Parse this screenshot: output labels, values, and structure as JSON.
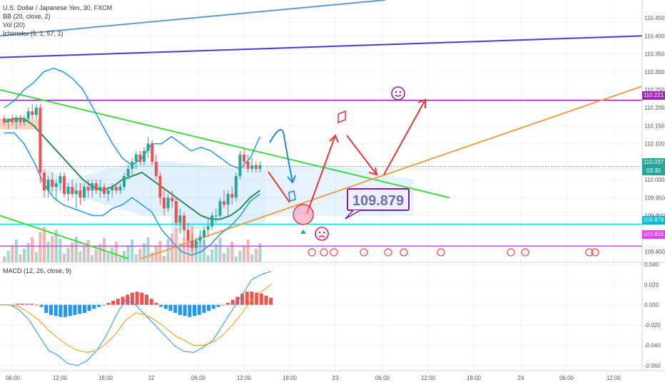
{
  "header": {
    "symbol_line": "U.S. Dollar / Japanese Yen, 30, FXCM",
    "indicators": [
      "BB (20, close, 2)",
      "Vol (20)",
      "Ichimoku (5, 1, 57, 1)"
    ],
    "macd_label": "MACD (12, 26, close, 9)"
  },
  "annotation": {
    "target_box": "109.879"
  },
  "price_tags": {
    "resistance": "110.221",
    "current": "110.037",
    "countdown": "03:30",
    "cyan_line": "109.876",
    "magenta_line": "109.815"
  },
  "chart_data": [
    {
      "type": "candlestick",
      "symbol": "U.S. Dollar / Japanese Yen",
      "timeframe": "30",
      "ylim": [
        109.77,
        110.5
      ],
      "y_ticks": [
        "110.450",
        "110.400",
        "110.350",
        "110.300",
        "110.250",
        "110.200",
        "110.150",
        "110.100",
        "110.050",
        "110.000",
        "109.950",
        "109.900",
        "109.850",
        "109.800"
      ],
      "x_ticks": [
        "06:00",
        "12:00",
        "18:00",
        "22",
        "06:00",
        "12:00",
        "18:00",
        "23",
        "06:00",
        "12:00",
        "18:00",
        "24",
        "06:00",
        "12:00"
      ],
      "horizontal_levels": [
        {
          "value": 110.221,
          "color": "#9c27b0"
        },
        {
          "value": 109.876,
          "color": "#00e5ff"
        },
        {
          "value": 109.815,
          "color": "#e040fb"
        },
        {
          "value": 110.037,
          "color": "#26a69a"
        }
      ],
      "candles_ohlc": [
        [
          110.17,
          110.18,
          110.15,
          110.16
        ],
        [
          110.16,
          110.17,
          110.14,
          110.17
        ],
        [
          110.17,
          110.18,
          110.15,
          110.16
        ],
        [
          110.16,
          110.18,
          110.14,
          110.17
        ],
        [
          110.17,
          110.18,
          110.15,
          110.16
        ],
        [
          110.16,
          110.18,
          110.15,
          110.17
        ],
        [
          110.17,
          110.2,
          110.16,
          110.19
        ],
        [
          110.19,
          110.21,
          110.17,
          110.18
        ],
        [
          110.18,
          110.21,
          110.17,
          110.2
        ],
        [
          110.2,
          110.21,
          109.99,
          110.02
        ],
        [
          110.02,
          110.03,
          109.95,
          109.97
        ],
        [
          109.97,
          110.01,
          109.95,
          110.0
        ],
        [
          110.0,
          110.02,
          109.96,
          109.98
        ],
        [
          109.98,
          110.0,
          109.94,
          109.99
        ],
        [
          109.99,
          110.02,
          109.97,
          110.01
        ],
        [
          110.01,
          110.02,
          109.95,
          109.96
        ],
        [
          109.96,
          109.99,
          109.94,
          109.98
        ],
        [
          109.98,
          110.0,
          109.95,
          109.96
        ],
        [
          109.96,
          109.99,
          109.92,
          109.97
        ],
        [
          109.97,
          109.99,
          109.93,
          109.95
        ],
        [
          109.95,
          109.99,
          109.94,
          109.98
        ],
        [
          109.98,
          110.0,
          109.95,
          109.97
        ],
        [
          109.97,
          110.0,
          109.95,
          109.99
        ],
        [
          109.99,
          110.0,
          109.96,
          109.97
        ],
        [
          109.97,
          110.0,
          109.95,
          109.98
        ],
        [
          109.98,
          109.99,
          109.95,
          109.96
        ],
        [
          109.96,
          109.98,
          109.94,
          109.97
        ],
        [
          109.97,
          109.99,
          109.95,
          109.98
        ],
        [
          109.98,
          109.99,
          109.96,
          109.97
        ],
        [
          109.97,
          109.99,
          109.96,
          109.98
        ],
        [
          109.98,
          110.02,
          109.97,
          110.01
        ],
        [
          110.01,
          110.04,
          110.0,
          110.03
        ],
        [
          110.03,
          110.06,
          110.01,
          110.05
        ],
        [
          110.05,
          110.08,
          110.03,
          110.07
        ],
        [
          110.07,
          110.08,
          110.04,
          110.05
        ],
        [
          110.05,
          110.09,
          110.04,
          110.08
        ],
        [
          110.08,
          110.12,
          110.06,
          110.1
        ],
        [
          110.1,
          110.11,
          110.04,
          110.05
        ],
        [
          110.05,
          110.07,
          110.0,
          110.01
        ],
        [
          110.01,
          110.02,
          109.93,
          109.95
        ],
        [
          109.95,
          109.98,
          109.9,
          109.92
        ],
        [
          109.92,
          109.96,
          109.91,
          109.95
        ],
        [
          109.95,
          109.97,
          109.92,
          109.94
        ],
        [
          109.94,
          109.95,
          109.87,
          109.88
        ],
        [
          109.88,
          109.92,
          109.85,
          109.9
        ],
        [
          109.9,
          109.91,
          109.84,
          109.86
        ],
        [
          109.86,
          109.88,
          109.81,
          109.83
        ],
        [
          109.83,
          109.85,
          109.8,
          109.81
        ],
        [
          109.81,
          109.84,
          109.8,
          109.83
        ],
        [
          109.83,
          109.86,
          109.82,
          109.84
        ],
        [
          109.84,
          109.87,
          109.82,
          109.86
        ],
        [
          109.86,
          109.89,
          109.84,
          109.87
        ],
        [
          109.87,
          109.91,
          109.86,
          109.9
        ],
        [
          109.9,
          109.92,
          109.88,
          109.9
        ],
        [
          109.9,
          109.95,
          109.89,
          109.94
        ],
        [
          109.94,
          109.97,
          109.92,
          109.93
        ],
        [
          109.93,
          109.97,
          109.9,
          109.96
        ],
        [
          109.96,
          109.98,
          109.93,
          109.95
        ],
        [
          109.95,
          110.02,
          109.94,
          110.01
        ],
        [
          110.01,
          110.08,
          110.0,
          110.07
        ],
        [
          110.07,
          110.09,
          110.03,
          110.05
        ],
        [
          110.05,
          110.07,
          110.02,
          110.03
        ],
        [
          110.03,
          110.06,
          110.02,
          110.04
        ],
        [
          110.04,
          110.05,
          110.02,
          110.03
        ],
        [
          110.03,
          110.05,
          110.02,
          110.04
        ]
      ],
      "bollinger": {
        "upper": [
          110.2,
          110.22,
          110.25,
          110.27,
          110.3,
          110.31,
          110.3,
          110.28,
          110.25,
          110.2,
          110.15,
          110.1,
          110.06,
          110.04,
          110.06,
          110.1,
          110.1,
          110.12,
          110.1,
          110.08,
          110.09,
          110.08,
          110.06,
          110.04,
          110.03,
          110.06,
          110.12
        ],
        "middle": [
          110.16,
          110.17,
          110.17,
          110.15,
          110.12,
          110.09,
          110.06,
          110.03,
          110.0,
          109.98,
          109.97,
          109.98,
          110.0,
          110.01,
          110.02,
          110.0,
          109.98,
          109.96,
          109.94,
          109.92,
          109.9,
          109.89,
          109.89,
          109.9,
          109.92,
          109.95,
          109.97
        ],
        "lower": [
          110.13,
          110.13,
          110.1,
          110.05,
          109.99,
          109.95,
          109.93,
          109.92,
          109.91,
          109.9,
          109.9,
          109.92,
          109.93,
          109.95,
          109.93,
          109.91,
          109.86,
          109.83,
          109.8,
          109.79,
          109.8,
          109.82,
          109.85,
          109.87,
          109.9,
          109.94,
          109.96
        ]
      },
      "trendlines": [
        {
          "color": "#5b9bd5",
          "from": [
            0,
            110.4
          ],
          "to": [
            60,
            110.5
          ]
        },
        {
          "color": "#3f3fd1",
          "from": [
            0,
            110.34
          ],
          "to": [
            100,
            110.4
          ]
        },
        {
          "color": "#3ddc3d",
          "from": [
            0,
            110.25
          ],
          "to": [
            70,
            109.95
          ]
        },
        {
          "color": "#3ddc3d",
          "from": [
            0,
            109.9
          ],
          "to": [
            20,
            109.78
          ]
        },
        {
          "color": "#f0a04b",
          "from": [
            22,
            109.78
          ],
          "to": [
            100,
            110.26
          ]
        }
      ],
      "drawn_path_targets": {
        "low": 109.879,
        "high": 110.221
      }
    },
    {
      "type": "histogram",
      "title": "MACD (12, 26, close, 9)",
      "ylim": [
        -0.065,
        0.042
      ],
      "y_ticks": [
        "0.040",
        "0.020",
        "0.000",
        "-0.020",
        "-0.040",
        "-0.060"
      ],
      "histogram": [
        0.0,
        0.0,
        0.0,
        0.001,
        0.001,
        0.001,
        0.001,
        0.0,
        -0.002,
        -0.008,
        -0.01,
        -0.011,
        -0.012,
        -0.012,
        -0.011,
        -0.01,
        -0.009,
        -0.008,
        -0.006,
        -0.004,
        -0.002,
        0.0,
        0.002,
        0.004,
        0.006,
        0.008,
        0.01,
        0.012,
        0.013,
        0.012,
        0.01,
        0.006,
        0.002,
        -0.002,
        -0.004,
        -0.006,
        -0.008,
        -0.01,
        -0.011,
        -0.012,
        -0.011,
        -0.01,
        -0.008,
        -0.006,
        -0.004,
        -0.002,
        0.0,
        0.002,
        0.005,
        0.008,
        0.011,
        0.013,
        0.013,
        0.012,
        0.011,
        0.009,
        0.007
      ],
      "macd_line": [
        0.0,
        0.0,
        -0.005,
        -0.015,
        -0.03,
        -0.045,
        -0.05,
        -0.058,
        -0.06,
        -0.055,
        -0.045,
        -0.03,
        -0.01,
        0.005,
        0.0,
        -0.01,
        -0.02,
        -0.03,
        -0.04,
        -0.046,
        -0.047,
        -0.042,
        -0.035,
        -0.02,
        -0.005,
        0.01,
        0.025,
        0.03,
        0.033
      ],
      "signal_line": [
        0.0,
        0.0,
        -0.002,
        -0.008,
        -0.015,
        -0.025,
        -0.033,
        -0.04,
        -0.045,
        -0.047,
        -0.045,
        -0.038,
        -0.028,
        -0.015,
        -0.008,
        -0.01,
        -0.015,
        -0.022,
        -0.03,
        -0.035,
        -0.04,
        -0.04,
        -0.037,
        -0.03,
        -0.02,
        -0.008,
        0.005,
        0.013,
        0.02
      ]
    }
  ]
}
